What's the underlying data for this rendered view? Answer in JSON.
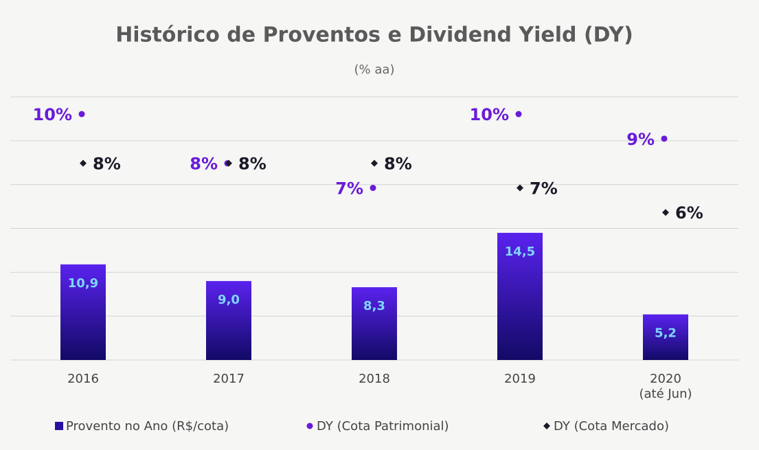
{
  "chart_data": {
    "type": "bar_scatter",
    "title": "Histórico de Proventos e Dividend Yield (DY)",
    "subtitle": "(% aa)",
    "categories": [
      "2016",
      "2017",
      "2018",
      "2019",
      "2020 (até Jun)"
    ],
    "ylim": [
      0,
      30
    ],
    "yticks": [
      0,
      5,
      10,
      15,
      20,
      25,
      30
    ],
    "y2lim": [
      0,
      10.7
    ],
    "grid": true,
    "series": [
      {
        "name": "Provento no Ano (R$/cota)",
        "color": "#3b14c8",
        "kind": "bar",
        "values": [
          10.9,
          9.0,
          8.3,
          14.5,
          5.2
        ],
        "value_labels": [
          "10,9",
          "9,0",
          "8,3",
          "14,5",
          "5,2"
        ]
      },
      {
        "name": "DY (Cota Patrimonial)",
        "color": "#6a1bd8",
        "kind": "dot",
        "axis": "y2",
        "values": [
          10,
          8,
          7,
          10,
          9
        ],
        "value_labels": [
          "10%",
          "8%",
          "7%",
          "10%",
          "9%"
        ]
      },
      {
        "name": "DY (Cota Mercado)",
        "color": "#1a1a28",
        "kind": "diamond",
        "axis": "y2",
        "values": [
          8,
          8,
          8,
          7,
          6
        ],
        "value_labels": [
          "8%",
          "8%",
          "8%",
          "7%",
          "6%"
        ]
      }
    ],
    "legend": "bottom"
  }
}
